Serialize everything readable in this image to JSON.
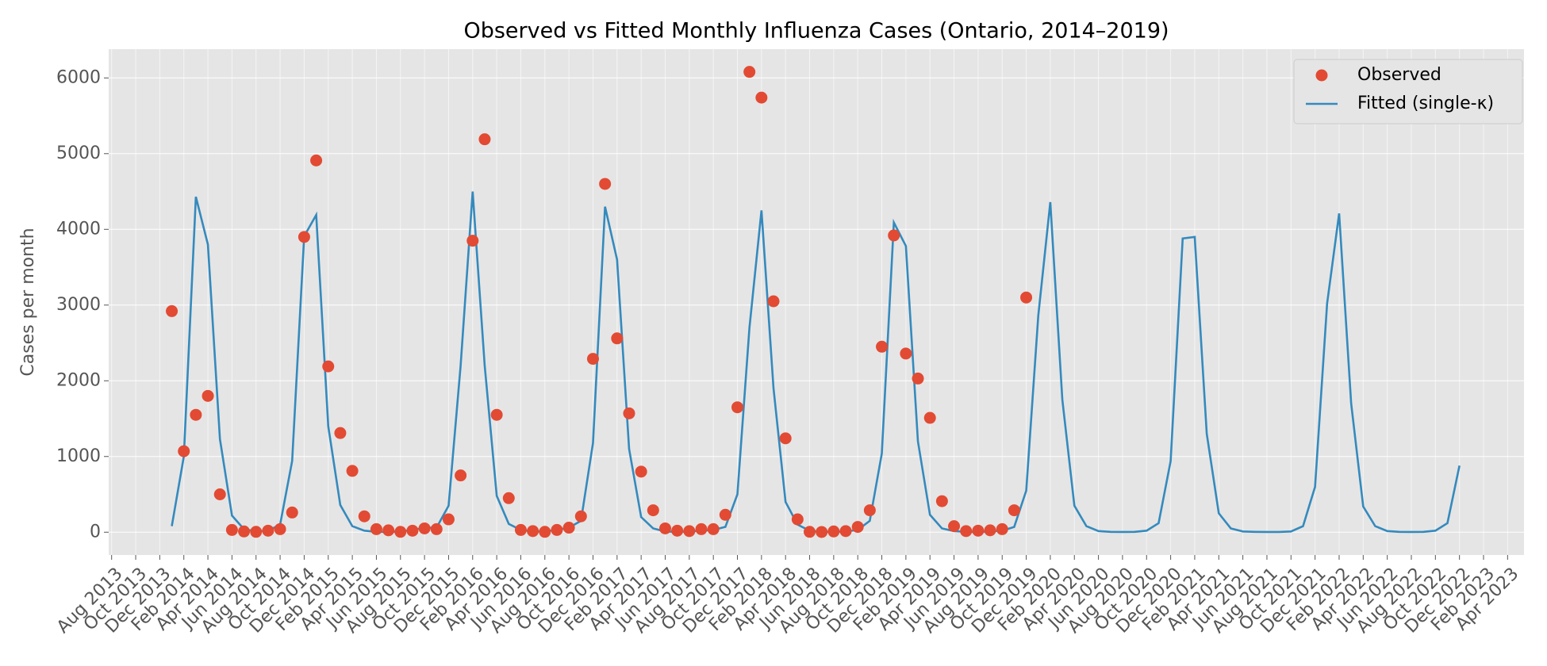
{
  "chart_data": {
    "type": "line",
    "title": "Observed vs Fitted Monthly Influenza Cases (Ontario, 2014–2019)",
    "y_label": "Cases per month",
    "x": [
      "2014-01",
      "2014-02",
      "2014-03",
      "2014-04",
      "2014-05",
      "2014-06",
      "2014-07",
      "2014-08",
      "2014-09",
      "2014-10",
      "2014-11",
      "2014-12",
      "2015-01",
      "2015-02",
      "2015-03",
      "2015-04",
      "2015-05",
      "2015-06",
      "2015-07",
      "2015-08",
      "2015-09",
      "2015-10",
      "2015-11",
      "2015-12",
      "2016-01",
      "2016-02",
      "2016-03",
      "2016-04",
      "2016-05",
      "2016-06",
      "2016-07",
      "2016-08",
      "2016-09",
      "2016-10",
      "2016-11",
      "2016-12",
      "2017-01",
      "2017-02",
      "2017-03",
      "2017-04",
      "2017-05",
      "2017-06",
      "2017-07",
      "2017-08",
      "2017-09",
      "2017-10",
      "2017-11",
      "2017-12",
      "2018-01",
      "2018-02",
      "2018-03",
      "2018-04",
      "2018-05",
      "2018-06",
      "2018-07",
      "2018-08",
      "2018-09",
      "2018-10",
      "2018-11",
      "2018-12",
      "2019-01",
      "2019-02",
      "2019-03",
      "2019-04",
      "2019-05",
      "2019-06",
      "2019-07",
      "2019-08",
      "2019-09",
      "2019-10",
      "2019-11",
      "2019-12",
      "2020-01",
      "2020-02",
      "2020-03",
      "2020-04",
      "2020-05",
      "2020-06",
      "2020-07",
      "2020-08",
      "2020-09",
      "2020-10",
      "2020-11",
      "2020-12",
      "2021-01",
      "2021-02",
      "2021-03",
      "2021-04",
      "2021-05",
      "2021-06",
      "2021-07",
      "2021-08",
      "2021-09",
      "2021-10",
      "2021-11",
      "2021-12",
      "2022-01",
      "2022-02",
      "2022-03",
      "2022-04",
      "2022-05",
      "2022-06",
      "2022-07",
      "2022-08",
      "2022-09",
      "2022-10",
      "2022-11",
      "2022-12"
    ],
    "series": [
      {
        "name": "Observed",
        "color": "#E24A33",
        "marker": "circle",
        "values": [
          2920,
          1070,
          1550,
          1800,
          500,
          30,
          10,
          5,
          20,
          40,
          260,
          3900,
          4910,
          2190,
          1310,
          810,
          210,
          40,
          25,
          5,
          20,
          50,
          40,
          170,
          750,
          3850,
          5190,
          1550,
          450,
          30,
          15,
          5,
          30,
          60,
          210,
          2290,
          4600,
          2560,
          1570,
          800,
          290,
          50,
          20,
          15,
          40,
          40,
          230,
          1650,
          6080,
          5740,
          3050,
          1240,
          170,
          5,
          3,
          10,
          15,
          70,
          290,
          2450,
          3920,
          2360,
          2030,
          1510,
          410,
          80,
          15,
          20,
          25,
          40,
          290,
          3100,
          null,
          null,
          null,
          null,
          null,
          null,
          null,
          null,
          null,
          null,
          null,
          null,
          null,
          null,
          null,
          null,
          null,
          null,
          null,
          null,
          null,
          null,
          null,
          null,
          null,
          null,
          null,
          null,
          null,
          null,
          null,
          null,
          null,
          null,
          null,
          null
        ]
      },
      {
        "name": "Fitted (single-κ)",
        "color": "#348ABD",
        "marker": "line",
        "values": [
          80,
          1000,
          4430,
          3800,
          1230,
          220,
          40,
          10,
          20,
          100,
          940,
          3910,
          4190,
          1400,
          360,
          80,
          20,
          5,
          5,
          10,
          30,
          60,
          60,
          350,
          2200,
          4500,
          2200,
          480,
          110,
          30,
          10,
          10,
          30,
          60,
          150,
          1180,
          4300,
          3600,
          1100,
          200,
          50,
          10,
          5,
          10,
          20,
          30,
          70,
          500,
          2700,
          4250,
          1900,
          400,
          100,
          20,
          5,
          5,
          10,
          30,
          150,
          1040,
          4090,
          3780,
          1200,
          230,
          50,
          15,
          5,
          5,
          10,
          20,
          70,
          550,
          2860,
          4360,
          1750,
          350,
          80,
          15,
          5,
          3,
          5,
          20,
          120,
          940,
          3880,
          3900,
          1300,
          250,
          50,
          10,
          5,
          3,
          3,
          10,
          80,
          600,
          3020,
          4210,
          1700,
          340,
          80,
          15,
          5,
          3,
          5,
          20,
          120,
          880
        ]
      }
    ],
    "xlim": [
      "2013-07-24",
      "2023-05-12"
    ],
    "xticks": [
      {
        "value": "2013-08",
        "label": "Aug 2013"
      },
      {
        "value": "2013-10",
        "label": "Oct 2013"
      },
      {
        "value": "2013-12",
        "label": "Dec 2013"
      },
      {
        "value": "2014-02",
        "label": "Feb 2014"
      },
      {
        "value": "2014-04",
        "label": "Apr 2014"
      },
      {
        "value": "2014-06",
        "label": "Jun 2014"
      },
      {
        "value": "2014-08",
        "label": "Aug 2014"
      },
      {
        "value": "2014-10",
        "label": "Oct 2014"
      },
      {
        "value": "2014-12",
        "label": "Dec 2014"
      },
      {
        "value": "2015-02",
        "label": "Feb 2015"
      },
      {
        "value": "2015-04",
        "label": "Apr 2015"
      },
      {
        "value": "2015-06",
        "label": "Jun 2015"
      },
      {
        "value": "2015-08",
        "label": "Aug 2015"
      },
      {
        "value": "2015-10",
        "label": "Oct 2015"
      },
      {
        "value": "2015-12",
        "label": "Dec 2015"
      },
      {
        "value": "2016-02",
        "label": "Feb 2016"
      },
      {
        "value": "2016-04",
        "label": "Apr 2016"
      },
      {
        "value": "2016-06",
        "label": "Jun 2016"
      },
      {
        "value": "2016-08",
        "label": "Aug 2016"
      },
      {
        "value": "2016-10",
        "label": "Oct 2016"
      },
      {
        "value": "2016-12",
        "label": "Dec 2016"
      },
      {
        "value": "2017-02",
        "label": "Feb 2017"
      },
      {
        "value": "2017-04",
        "label": "Apr 2017"
      },
      {
        "value": "2017-06",
        "label": "Jun 2017"
      },
      {
        "value": "2017-08",
        "label": "Aug 2017"
      },
      {
        "value": "2017-10",
        "label": "Oct 2017"
      },
      {
        "value": "2017-12",
        "label": "Dec 2017"
      },
      {
        "value": "2018-02",
        "label": "Feb 2018"
      },
      {
        "value": "2018-04",
        "label": "Apr 2018"
      },
      {
        "value": "2018-06",
        "label": "Jun 2018"
      },
      {
        "value": "2018-08",
        "label": "Aug 2018"
      },
      {
        "value": "2018-10",
        "label": "Oct 2018"
      },
      {
        "value": "2018-12",
        "label": "Dec 2018"
      },
      {
        "value": "2019-02",
        "label": "Feb 2019"
      },
      {
        "value": "2019-04",
        "label": "Apr 2019"
      },
      {
        "value": "2019-06",
        "label": "Jun 2019"
      },
      {
        "value": "2019-08",
        "label": "Aug 2019"
      },
      {
        "value": "2019-10",
        "label": "Oct 2019"
      },
      {
        "value": "2019-12",
        "label": "Dec 2019"
      },
      {
        "value": "2020-02",
        "label": "Feb 2020"
      },
      {
        "value": "2020-04",
        "label": "Apr 2020"
      },
      {
        "value": "2020-06",
        "label": "Jun 2020"
      },
      {
        "value": "2020-08",
        "label": "Aug 2020"
      },
      {
        "value": "2020-10",
        "label": "Oct 2020"
      },
      {
        "value": "2020-12",
        "label": "Dec 2020"
      },
      {
        "value": "2021-02",
        "label": "Feb 2021"
      },
      {
        "value": "2021-04",
        "label": "Apr 2021"
      },
      {
        "value": "2021-06",
        "label": "Jun 2021"
      },
      {
        "value": "2021-08",
        "label": "Aug 2021"
      },
      {
        "value": "2021-10",
        "label": "Oct 2021"
      },
      {
        "value": "2021-12",
        "label": "Dec 2021"
      },
      {
        "value": "2022-02",
        "label": "Feb 2022"
      },
      {
        "value": "2022-04",
        "label": "Apr 2022"
      },
      {
        "value": "2022-06",
        "label": "Jun 2022"
      },
      {
        "value": "2022-08",
        "label": "Aug 2022"
      },
      {
        "value": "2022-10",
        "label": "Oct 2022"
      },
      {
        "value": "2022-12",
        "label": "Dec 2022"
      },
      {
        "value": "2023-02",
        "label": "Feb 2023"
      },
      {
        "value": "2023-04",
        "label": "Apr 2023"
      }
    ],
    "ylim": [
      -301,
      6380
    ],
    "yticks": [
      0,
      1000,
      2000,
      3000,
      4000,
      5000,
      6000
    ],
    "grid": true,
    "legend": "upper-right"
  }
}
